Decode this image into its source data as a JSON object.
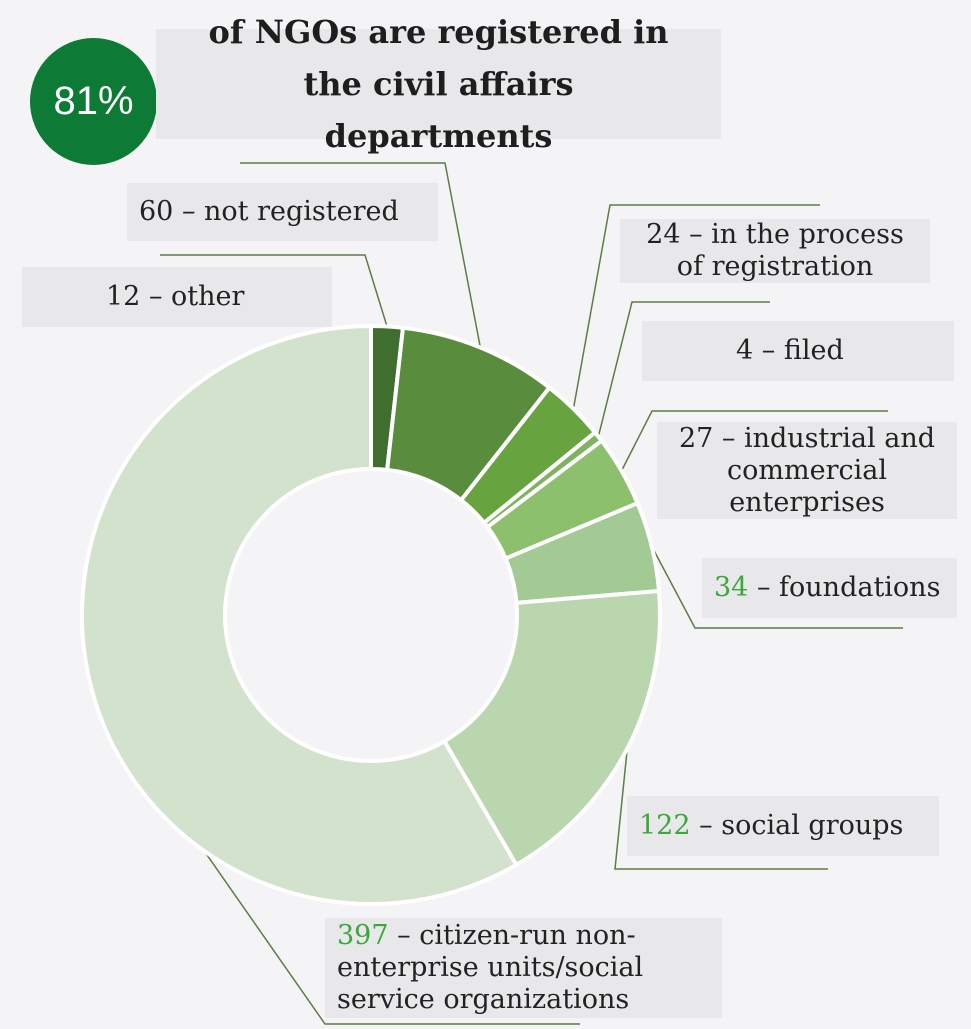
{
  "headline": {
    "percent": "81%",
    "text": "of NGOs are registered in the civil affairs departments"
  },
  "colors": {
    "badge": "#0d7a35",
    "highlight_number": "#3aa83a"
  },
  "chart_data": {
    "type": "pie",
    "donut": true,
    "slices": [
      {
        "value": 12,
        "text": "– other",
        "number_label": "12",
        "color": "#3f6e2f",
        "number_highlight": false
      },
      {
        "value": 60,
        "text": "– not registered",
        "number_label": "60",
        "color": "#5a8c3e",
        "number_highlight": false
      },
      {
        "value": 24,
        "text": "– in the process of registration",
        "number_label": "24",
        "color": "#67a440",
        "number_highlight": false
      },
      {
        "value": 4,
        "text": "– filed",
        "number_label": "4",
        "color": "#7fb35f",
        "number_highlight": false
      },
      {
        "value": 27,
        "text": "– industrial and commercial enterprises",
        "number_label": "27",
        "color": "#8dc06c",
        "number_highlight": false
      },
      {
        "value": 34,
        "text": "– foundations",
        "number_label": "34",
        "color": "#a3c995",
        "number_highlight": true
      },
      {
        "value": 122,
        "text": "– social groups",
        "number_label": "122",
        "color": "#b9d6ae",
        "number_highlight": true
      },
      {
        "value": 397,
        "text": "– citizen-run non-enterprise units/social service organizations",
        "number_label": "397",
        "color": "#d3e2cc",
        "number_highlight": true
      }
    ]
  }
}
